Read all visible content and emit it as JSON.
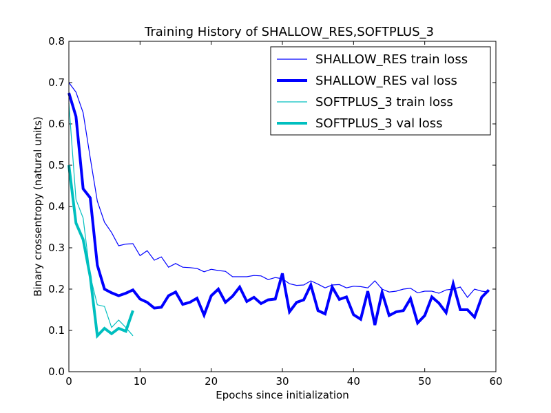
{
  "chart_data": {
    "type": "line",
    "title": "Training History of SHALLOW_RES,SOFTPLUS_3",
    "xlabel": "Epochs since initialization",
    "ylabel": "Binary crossentropy (natural units)",
    "xlim": [
      0,
      60
    ],
    "ylim": [
      0.0,
      0.8
    ],
    "xticks": [
      0,
      10,
      20,
      30,
      40,
      50,
      60
    ],
    "yticks": [
      0.0,
      0.1,
      0.2,
      0.3,
      0.4,
      0.5,
      0.6,
      0.7,
      0.8
    ],
    "ytick_labels": [
      "0.0",
      "0.1",
      "0.2",
      "0.3",
      "0.4",
      "0.5",
      "0.6",
      "0.7",
      "0.8"
    ],
    "grid": false,
    "legend_position": "top-right",
    "series": [
      {
        "name": "SHALLOW_RES train loss",
        "color": "#0000ff",
        "weight": "thin",
        "x": [
          0,
          1,
          2,
          3,
          4,
          5,
          6,
          7,
          8,
          9,
          10,
          11,
          12,
          13,
          14,
          15,
          16,
          17,
          18,
          19,
          20,
          21,
          22,
          23,
          24,
          25,
          26,
          27,
          28,
          29,
          30,
          31,
          32,
          33,
          34,
          35,
          36,
          37,
          38,
          39,
          40,
          41,
          42,
          43,
          44,
          45,
          46,
          47,
          48,
          49,
          50,
          51,
          52,
          53,
          54,
          55,
          56,
          57,
          58,
          59
        ],
        "y": [
          0.7,
          0.677,
          0.627,
          0.518,
          0.413,
          0.362,
          0.337,
          0.305,
          0.309,
          0.31,
          0.281,
          0.293,
          0.27,
          0.278,
          0.253,
          0.262,
          0.253,
          0.252,
          0.25,
          0.242,
          0.248,
          0.245,
          0.243,
          0.23,
          0.23,
          0.23,
          0.233,
          0.232,
          0.223,
          0.228,
          0.225,
          0.213,
          0.209,
          0.21,
          0.22,
          0.212,
          0.203,
          0.21,
          0.211,
          0.203,
          0.207,
          0.206,
          0.203,
          0.22,
          0.2,
          0.193,
          0.195,
          0.2,
          0.202,
          0.191,
          0.195,
          0.195,
          0.19,
          0.198,
          0.2,
          0.205,
          0.18,
          0.2,
          0.195,
          0.193
        ]
      },
      {
        "name": "SHALLOW_RES val loss",
        "color": "#0000ff",
        "weight": "thick",
        "x": [
          0,
          1,
          2,
          3,
          4,
          5,
          6,
          7,
          8,
          9,
          10,
          11,
          12,
          13,
          14,
          15,
          16,
          17,
          18,
          19,
          20,
          21,
          22,
          23,
          24,
          25,
          26,
          27,
          28,
          29,
          30,
          31,
          32,
          33,
          34,
          35,
          36,
          37,
          38,
          39,
          40,
          41,
          42,
          43,
          44,
          45,
          46,
          47,
          48,
          49,
          50,
          51,
          52,
          53,
          54,
          55,
          56,
          57,
          58,
          59
        ],
        "y": [
          0.675,
          0.618,
          0.443,
          0.421,
          0.258,
          0.2,
          0.191,
          0.184,
          0.19,
          0.198,
          0.176,
          0.168,
          0.154,
          0.156,
          0.184,
          0.193,
          0.163,
          0.168,
          0.178,
          0.137,
          0.184,
          0.2,
          0.168,
          0.183,
          0.205,
          0.17,
          0.18,
          0.165,
          0.174,
          0.176,
          0.238,
          0.145,
          0.168,
          0.174,
          0.21,
          0.148,
          0.14,
          0.205,
          0.175,
          0.181,
          0.138,
          0.127,
          0.195,
          0.113,
          0.192,
          0.136,
          0.145,
          0.148,
          0.177,
          0.118,
          0.136,
          0.181,
          0.166,
          0.143,
          0.213,
          0.15,
          0.15,
          0.132,
          0.18,
          0.198
        ]
      },
      {
        "name": "SOFTPLUS_3 train loss",
        "color": "#00bfbf",
        "weight": "thin",
        "x": [
          0,
          1,
          2,
          3,
          4,
          5,
          6,
          7,
          8,
          9
        ],
        "y": [
          0.65,
          0.417,
          0.372,
          0.232,
          0.162,
          0.158,
          0.107,
          0.125,
          0.107,
          0.087
        ]
      },
      {
        "name": "SOFTPLUS_3 val loss",
        "color": "#00bfbf",
        "weight": "thick",
        "x": [
          0,
          1,
          2,
          3,
          4,
          5,
          6,
          7,
          8,
          9
        ],
        "y": [
          0.5,
          0.36,
          0.32,
          0.23,
          0.087,
          0.105,
          0.092,
          0.105,
          0.098,
          0.148
        ]
      }
    ]
  }
}
